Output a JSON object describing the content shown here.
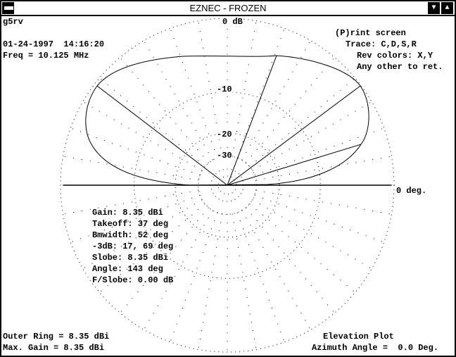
{
  "window": {
    "title": "EZNEC - FROZEN",
    "buttons": [
      "system-menu",
      "minimize",
      "maximize"
    ]
  },
  "header": {
    "name": "g5rv",
    "datetime": "01-24-1997  14:16:20",
    "freq": "Freq = 10.125 MHz"
  },
  "help": {
    "print": "(P)rint screen",
    "trace": "Trace: C,D,S,R",
    "rev": "Rev colors: X,Y",
    "other": "Any other to ret."
  },
  "plot": {
    "ring_labels": {
      "outer": "0 dB",
      "m10": "-10",
      "m20": "-20",
      "m30": "-30"
    },
    "angle_label": "0 deg.",
    "scale": "ARRL log",
    "rings_db": [
      0,
      -10,
      -20,
      -30,
      -40,
      -50
    ],
    "pattern_lines_deg": [
      37,
      17,
      69,
      143
    ]
  },
  "stats": {
    "gain": "Gain: 8.35 dBi",
    "takeoff": "Takeoff: 37 deg",
    "bmwidth": "Bmwidth: 52 deg",
    "m3db": "-3dB: 17, 69 deg",
    "slobe": "Slobe: 8.35 dBi",
    "angle": "Angle: 143 deg",
    "fslobe": "F/Slobe: 0.00 dB"
  },
  "footer": {
    "outer_ring": "Outer Ring = 8.35 dBi",
    "max_gain": "Max. Gain = 8.35 dBi",
    "plot_type": "Elevation Plot",
    "azimuth": "Azimuth Angle =  0.0 Deg."
  }
}
